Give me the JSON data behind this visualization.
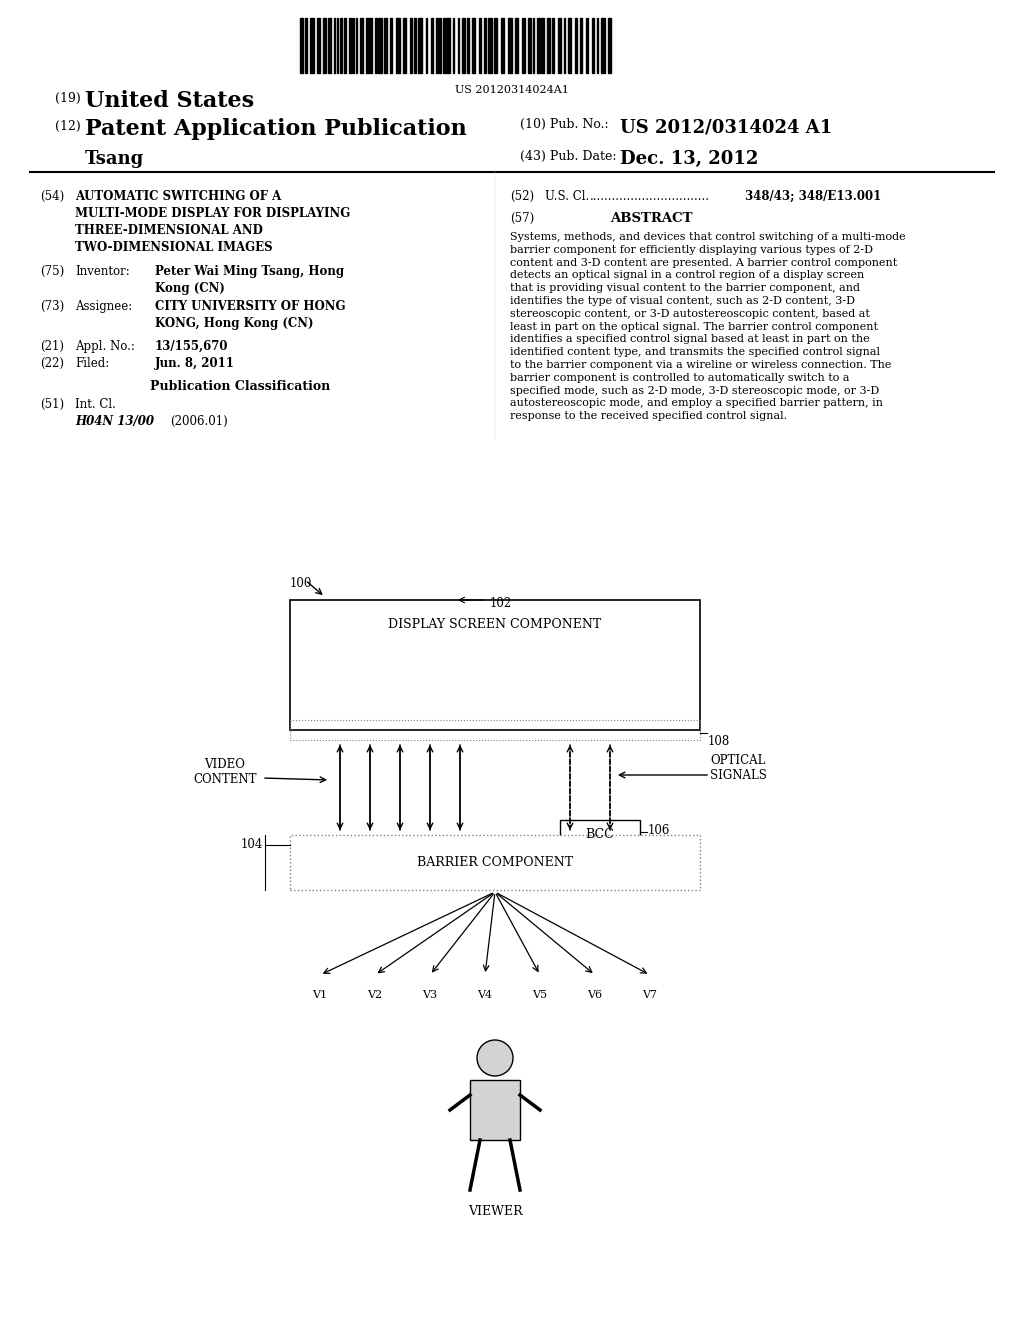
{
  "bg_color": "#ffffff",
  "title_font": "serif",
  "body_font": "serif",
  "barcode_text": "US 20120314024A1",
  "header": {
    "line1_num": "(19)",
    "line1_text": "United States",
    "line2_num": "(12)",
    "line2_text": "Patent Application Publication",
    "line2_right_label": "(10) Pub. No.:",
    "line2_right_value": "US 2012/0314024 A1",
    "line3_left": "Tsang",
    "line3_right_label": "(43) Pub. Date:",
    "line3_right_value": "Dec. 13, 2012"
  },
  "left_col": {
    "item54_num": "(54)",
    "item54_title": "AUTOMATIC SWITCHING OF A\nMULTI-MODE DISPLAY FOR DISPLAYING\nTHREE-DIMENSIONAL AND\nTWO-DIMENSIONAL IMAGES",
    "item75_num": "(75)",
    "item75_label": "Inventor:",
    "item75_value": "Peter Wai Ming Tsang, Hong\nKong (CN)",
    "item73_num": "(73)",
    "item73_label": "Assignee:",
    "item73_value": "CITY UNIVERSITY OF HONG\nKONG, Hong Kong (CN)",
    "item21_num": "(21)",
    "item21_label": "Appl. No.:",
    "item21_value": "13/155,670",
    "item22_num": "(22)",
    "item22_label": "Filed:",
    "item22_value": "Jun. 8, 2011",
    "pub_class_title": "Publication Classification",
    "item51_num": "(51)",
    "item51_label": "Int. Cl.",
    "item51_class": "H04N 13/00",
    "item51_year": "(2006.01)"
  },
  "right_col": {
    "item52_num": "(52)",
    "item52_label": "U.S. Cl.",
    "item52_dots": "................................",
    "item52_value": "348/43; 348/E13.001",
    "item57_num": "(57)",
    "item57_label": "ABSTRACT",
    "abstract_text": "Systems, methods, and devices that control switching of a multi-mode barrier component for efficiently displaying various types of 2-D content and 3-D content are presented. A barrier control component detects an optical signal in a control region of a display screen that is providing visual content to the barrier component, and identifies the type of visual content, such as 2-D content, 3-D stereoscopic content, or 3-D autostereoscopic content, based at least in part on the optical signal. The barrier control component identifies a specified control signal based at least in part on the identified content type, and transmits the specified control signal to the barrier component via a wireline or wireless connection. The barrier component is controlled to automatically switch to a specified mode, such as 2-D mode, 3-D stereoscopic mode, or 3-D autostereoscopic mode, and employ a specified barrier pattern, in response to the received specified control signal."
  },
  "diagram": {
    "ref100": "100",
    "ref102": "102",
    "ref104": "104",
    "ref106": "106",
    "ref108": "108",
    "label_display": "DISPLAY SCREEN COMPONENT",
    "label_barrier": "BARRIER COMPONENT",
    "label_bcc": "BCC",
    "label_video": "VIDEO\nCONTENT",
    "label_optical": "OPTICAL\nSIGNALS",
    "label_viewer": "VIEWER",
    "viewpoints": [
      "V1",
      "V2",
      "V3",
      "V4",
      "V5",
      "V6",
      "V7"
    ]
  }
}
